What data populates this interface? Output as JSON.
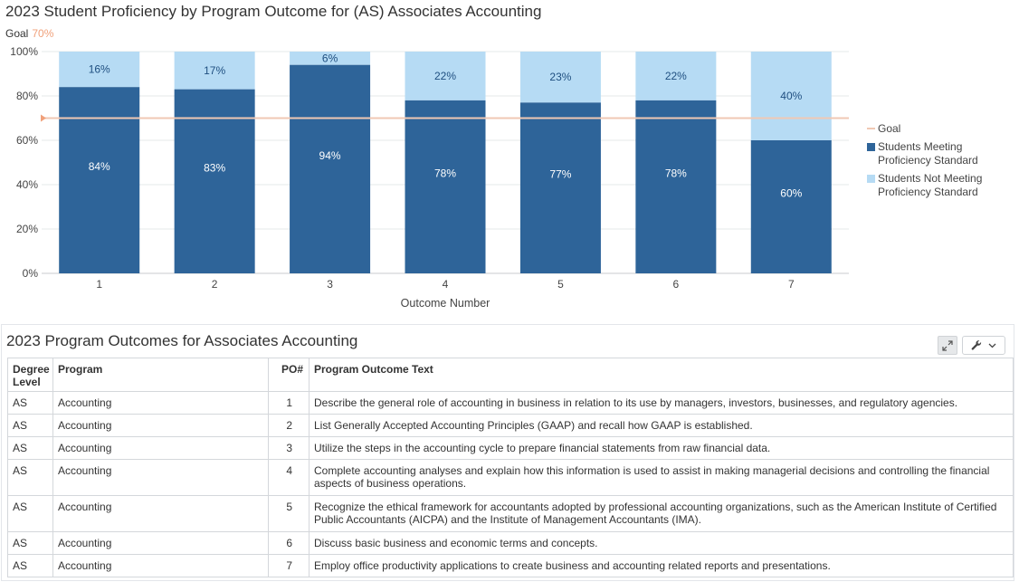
{
  "chart": {
    "title": "2023 Student Proficiency by Program Outcome for (AS) Associates Accounting",
    "goal_label": "Goal",
    "goal_value_text": "70%"
  },
  "chart_data": {
    "type": "bar",
    "stacked": true,
    "categories": [
      "1",
      "2",
      "3",
      "4",
      "5",
      "6",
      "7"
    ],
    "series": [
      {
        "name": "Students Meeting Proficiency Standard",
        "values": [
          84,
          83,
          94,
          78,
          77,
          78,
          60
        ],
        "color": "#2e6499"
      },
      {
        "name": "Students Not Meeting Proficiency Standard",
        "values": [
          16,
          17,
          6,
          22,
          23,
          22,
          40
        ],
        "color": "#b6dbf4"
      }
    ],
    "goal": {
      "name": "Goal",
      "value": 70,
      "color": "#f0c8b4"
    },
    "xlabel": "Outcome Number",
    "ylabel": "",
    "ylim": [
      0,
      100
    ],
    "yticks": [
      "0%",
      "20%",
      "40%",
      "60%",
      "80%",
      "100%"
    ],
    "ytick_values": [
      0,
      20,
      40,
      60,
      80,
      100
    ],
    "grid": true,
    "legend_position": "right"
  },
  "table": {
    "title": "2023 Program Outcomes for Associates Accounting",
    "columns": [
      "Degree Level",
      "Program",
      "PO#",
      "Program Outcome Text"
    ],
    "rows": [
      [
        "AS",
        "Accounting",
        "1",
        "Describe the general role of accounting in business in relation to its use by managers, investors, businesses, and regulatory agencies."
      ],
      [
        "AS",
        "Accounting",
        "2",
        "List Generally Accepted Accounting Principles (GAAP) and recall how GAAP is established."
      ],
      [
        "AS",
        "Accounting",
        "3",
        "Utilize the steps in the accounting cycle to prepare financial statements from raw financial data."
      ],
      [
        "AS",
        "Accounting",
        "4",
        "Complete accounting analyses and explain how this information is used to assist in making managerial decisions and controlling the financial aspects of business operations."
      ],
      [
        "AS",
        "Accounting",
        "5",
        "Recognize the ethical framework for accountants adopted by professional accounting organizations, such as the American Institute of Certified Public Accountants (AICPA) and the Institute of Management Accountants (IMA)."
      ],
      [
        "AS",
        "Accounting",
        "6",
        "Discuss basic business and economic terms and concepts."
      ],
      [
        "AS",
        "Accounting",
        "7",
        "Employ office productivity applications to create business and accounting related reports and presentations."
      ]
    ],
    "expand_icon": "expand-icon",
    "tools_icon": "wrench-icon",
    "dropdown_icon": "chevron-down-icon"
  }
}
